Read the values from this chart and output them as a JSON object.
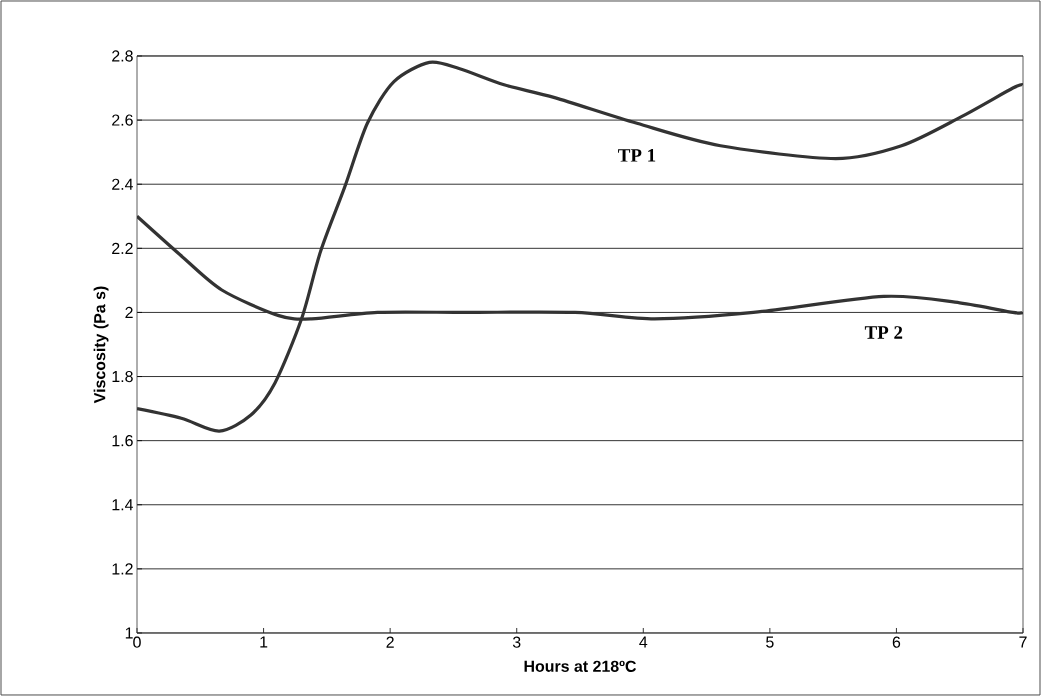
{
  "chart_data": {
    "type": "line",
    "xlabel": "Hours at 218ºC",
    "ylabel": "Viscosity (Pa s)",
    "xlim": [
      0,
      7
    ],
    "xticks": [
      0,
      1,
      2,
      3,
      4,
      5,
      6,
      7
    ],
    "ylim": [
      1,
      2.8
    ],
    "yticks": [
      1,
      1.2,
      1.4,
      1.6,
      1.8,
      2,
      2.2,
      2.4,
      2.6,
      2.8
    ],
    "grid": "y",
    "marker": "none",
    "line_style": "solid",
    "series": [
      {
        "name": "TP 1",
        "color": "#333333",
        "x": [
          0,
          0.35,
          0.65,
          0.9,
          1.09,
          1.3,
          1.45,
          1.64,
          1.82,
          2.03,
          2.31,
          2.55,
          2.9,
          3.3,
          3.95,
          4.61,
          5.52,
          6.04,
          6.51,
          6.92,
          7
        ],
        "values": [
          1.7,
          1.67,
          1.63,
          1.68,
          1.78,
          1.98,
          2.19,
          2.39,
          2.59,
          2.72,
          2.78,
          2.76,
          2.71,
          2.67,
          2.59,
          2.52,
          2.48,
          2.52,
          2.61,
          2.7,
          2.71
        ]
      },
      {
        "name": "TP 2",
        "color": "#333333",
        "x": [
          0,
          0.34,
          0.67,
          1.12,
          1.38,
          1.9,
          2.6,
          3.46,
          4.09,
          4.87,
          5.9,
          6.5,
          6.92,
          7
        ],
        "values": [
          2.3,
          2.18,
          2.07,
          1.99,
          1.98,
          2.0,
          2.0,
          2.0,
          1.98,
          2.0,
          2.05,
          2.03,
          2.0,
          2.0
        ]
      }
    ]
  }
}
